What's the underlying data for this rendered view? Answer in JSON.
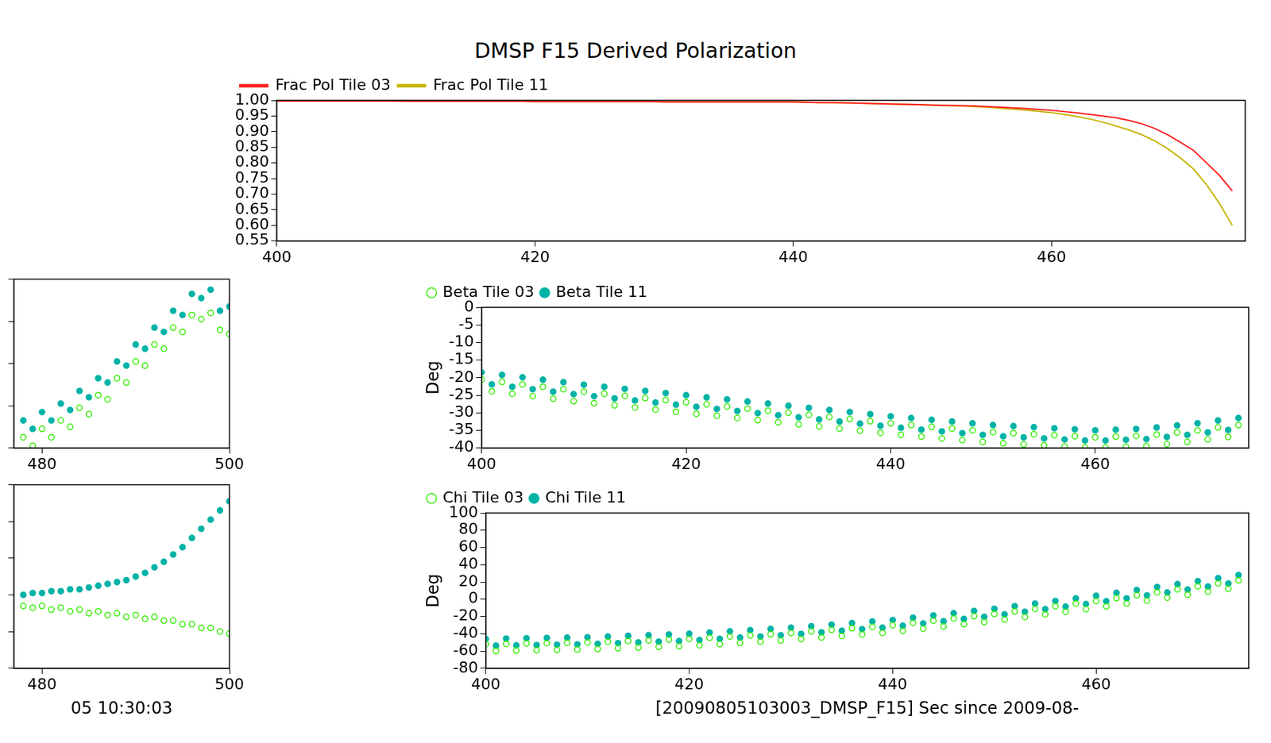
{
  "chart_data": [
    {
      "type": "line",
      "title": "DMSP F15  Derived Polarization",
      "x": [
        400,
        401,
        402,
        403,
        404,
        405,
        406,
        407,
        408,
        409,
        410,
        411,
        412,
        413,
        414,
        415,
        416,
        417,
        418,
        419,
        420,
        421,
        422,
        423,
        424,
        425,
        426,
        427,
        428,
        429,
        430,
        431,
        432,
        433,
        434,
        435,
        436,
        437,
        438,
        439,
        440,
        441,
        442,
        443,
        444,
        445,
        446,
        447,
        448,
        449,
        450,
        451,
        452,
        453,
        454,
        455,
        456,
        457,
        458,
        459,
        460,
        461,
        462,
        463,
        464,
        465,
        466,
        467,
        468,
        469,
        470,
        471,
        472,
        473,
        474
      ],
      "xlim": [
        400,
        475
      ],
      "xticks": [
        400,
        420,
        440,
        460
      ],
      "ylim": [
        0.55,
        1.0
      ],
      "yticks": [
        {
          "value": 0.55,
          "label": "0.55"
        },
        {
          "value": 0.6,
          "label": "0.60"
        },
        {
          "value": 0.65,
          "label": "0.65"
        },
        {
          "value": 0.7,
          "label": "0.70"
        },
        {
          "value": 0.75,
          "label": "0.75"
        },
        {
          "value": 0.8,
          "label": "0.80"
        },
        {
          "value": 0.85,
          "label": "0.85"
        },
        {
          "value": 0.9,
          "label": "0.90"
        },
        {
          "value": 0.95,
          "label": "0.95"
        },
        {
          "value": 1.0,
          "label": "1.00"
        }
      ],
      "grid": false,
      "legend": "top",
      "series": [
        {
          "name": "Frac Pol Tile 03",
          "color": "#ff2020",
          "line_style": "solid",
          "values": [
            0.998,
            0.998,
            0.998,
            0.998,
            0.998,
            0.998,
            0.998,
            0.998,
            0.998,
            0.998,
            0.997,
            0.997,
            0.997,
            0.997,
            0.997,
            0.997,
            0.997,
            0.997,
            0.997,
            0.997,
            0.996,
            0.996,
            0.996,
            0.996,
            0.996,
            0.996,
            0.996,
            0.996,
            0.996,
            0.996,
            0.995,
            0.995,
            0.995,
            0.995,
            0.995,
            0.995,
            0.995,
            0.995,
            0.995,
            0.995,
            0.995,
            0.994,
            0.993,
            0.993,
            0.992,
            0.991,
            0.99,
            0.989,
            0.988,
            0.987,
            0.986,
            0.985,
            0.984,
            0.983,
            0.982,
            0.98,
            0.978,
            0.976,
            0.974,
            0.971,
            0.968,
            0.964,
            0.96,
            0.955,
            0.95,
            0.944,
            0.936,
            0.925,
            0.91,
            0.89,
            0.865,
            0.84,
            0.8,
            0.76,
            0.71
          ]
        },
        {
          "name": "Frac Pol Tile 11",
          "color": "#c8b400",
          "line_style": "solid",
          "values": [
            0.998,
            0.998,
            0.998,
            0.998,
            0.998,
            0.998,
            0.998,
            0.998,
            0.998,
            0.998,
            0.997,
            0.997,
            0.997,
            0.997,
            0.997,
            0.997,
            0.997,
            0.997,
            0.997,
            0.997,
            0.996,
            0.996,
            0.996,
            0.996,
            0.996,
            0.996,
            0.996,
            0.996,
            0.996,
            0.996,
            0.995,
            0.995,
            0.995,
            0.995,
            0.995,
            0.995,
            0.995,
            0.995,
            0.995,
            0.995,
            0.995,
            0.994,
            0.993,
            0.993,
            0.992,
            0.991,
            0.99,
            0.989,
            0.988,
            0.987,
            0.986,
            0.984,
            0.983,
            0.982,
            0.98,
            0.978,
            0.975,
            0.972,
            0.969,
            0.965,
            0.961,
            0.955,
            0.948,
            0.94,
            0.93,
            0.918,
            0.905,
            0.89,
            0.87,
            0.845,
            0.815,
            0.78,
            0.73,
            0.67,
            0.6
          ]
        }
      ]
    },
    {
      "type": "scatter",
      "x": [
        400,
        401,
        402,
        403,
        404,
        405,
        406,
        407,
        408,
        409,
        410,
        411,
        412,
        413,
        414,
        415,
        416,
        417,
        418,
        419,
        420,
        421,
        422,
        423,
        424,
        425,
        426,
        427,
        428,
        429,
        430,
        431,
        432,
        433,
        434,
        435,
        436,
        437,
        438,
        439,
        440,
        441,
        442,
        443,
        444,
        445,
        446,
        447,
        448,
        449,
        450,
        451,
        452,
        453,
        454,
        455,
        456,
        457,
        458,
        459,
        460,
        461,
        462,
        463,
        464,
        465,
        466,
        467,
        468,
        469,
        470,
        471,
        472,
        473,
        474
      ],
      "xlim": [
        400,
        475
      ],
      "xticks": [
        400,
        420,
        440,
        460
      ],
      "ylim": [
        -40,
        0
      ],
      "yticks": [
        -40,
        -35,
        -30,
        -25,
        -20,
        -15,
        -10,
        -5,
        0
      ],
      "ylabel": "Deg",
      "grid": false,
      "legend": "top",
      "series": [
        {
          "name": "Beta Tile 03",
          "color": "#33ee00",
          "marker": "circle-open",
          "values": [
            -20.5,
            -23.9,
            -21.2,
            -24.6,
            -21.9,
            -25.3,
            -22.6,
            -26.0,
            -23.3,
            -26.7,
            -24.0,
            -27.3,
            -24.6,
            -27.9,
            -25.2,
            -28.5,
            -25.8,
            -29.1,
            -26.4,
            -29.7,
            -27.0,
            -30.3,
            -27.6,
            -30.9,
            -28.2,
            -31.5,
            -28.8,
            -32.1,
            -29.4,
            -32.7,
            -30.0,
            -33.3,
            -30.6,
            -33.9,
            -31.2,
            -34.5,
            -31.8,
            -35.1,
            -32.4,
            -35.7,
            -33.0,
            -36.3,
            -33.5,
            -36.8,
            -34.0,
            -37.3,
            -34.5,
            -37.8,
            -35.0,
            -38.3,
            -35.5,
            -38.7,
            -35.8,
            -39.0,
            -36.1,
            -39.3,
            -36.4,
            -39.6,
            -36.7,
            -39.9,
            -37.0,
            -39.9,
            -36.8,
            -39.7,
            -36.6,
            -39.5,
            -36.2,
            -38.9,
            -35.6,
            -38.3,
            -35.0,
            -37.6,
            -34.2,
            -36.9,
            -33.5
          ]
        },
        {
          "name": "Beta Tile 11",
          "color": "#00b3a6",
          "marker": "circle",
          "values": [
            -18.5,
            -21.9,
            -19.2,
            -22.6,
            -19.9,
            -23.3,
            -20.6,
            -24.0,
            -21.3,
            -24.7,
            -22.0,
            -25.3,
            -22.6,
            -25.9,
            -23.2,
            -26.5,
            -23.8,
            -27.1,
            -24.4,
            -27.7,
            -25.0,
            -28.3,
            -25.6,
            -28.9,
            -26.2,
            -29.5,
            -26.8,
            -30.1,
            -27.4,
            -30.7,
            -28.0,
            -31.3,
            -28.6,
            -31.9,
            -29.2,
            -32.5,
            -29.8,
            -33.1,
            -30.4,
            -33.7,
            -31.0,
            -34.3,
            -31.5,
            -34.8,
            -32.0,
            -35.3,
            -32.5,
            -35.8,
            -33.0,
            -36.3,
            -33.5,
            -36.7,
            -33.8,
            -37.0,
            -34.1,
            -37.3,
            -34.4,
            -37.6,
            -34.7,
            -37.9,
            -35.0,
            -37.9,
            -34.8,
            -37.7,
            -34.6,
            -37.5,
            -34.2,
            -36.9,
            -33.6,
            -36.3,
            -33.0,
            -35.6,
            -32.2,
            -34.9,
            -31.5
          ]
        }
      ]
    },
    {
      "type": "scatter",
      "x": [
        400,
        401,
        402,
        403,
        404,
        405,
        406,
        407,
        408,
        409,
        410,
        411,
        412,
        413,
        414,
        415,
        416,
        417,
        418,
        419,
        420,
        421,
        422,
        423,
        424,
        425,
        426,
        427,
        428,
        429,
        430,
        431,
        432,
        433,
        434,
        435,
        436,
        437,
        438,
        439,
        440,
        441,
        442,
        443,
        444,
        445,
        446,
        447,
        448,
        449,
        450,
        451,
        452,
        453,
        454,
        455,
        456,
        457,
        458,
        459,
        460,
        461,
        462,
        463,
        464,
        465,
        466,
        467,
        468,
        469,
        470,
        471,
        472,
        473,
        474
      ],
      "xlim": [
        400,
        475
      ],
      "xticks": [
        400,
        420,
        440,
        460
      ],
      "ylim": [
        -80,
        100
      ],
      "yticks": [
        -80,
        -60,
        -40,
        -20,
        0,
        20,
        40,
        60,
        80,
        100
      ],
      "ylabel": "Deg",
      "xlabel": "[20090805103003_DMSP_F15] Sec since 2009-08-",
      "grid": false,
      "legend": "top",
      "series": [
        {
          "name": "Chi Tile 03",
          "color": "#33ee00",
          "marker": "circle-open",
          "values": [
            -52,
            -59.8,
            -51.6,
            -59.4,
            -51.2,
            -59.0,
            -50.8,
            -58.6,
            -50.4,
            -58.2,
            -50,
            -57.6,
            -49.2,
            -56.8,
            -48.4,
            -56.0,
            -47.6,
            -55.2,
            -46.8,
            -54.4,
            -46,
            -53.3,
            -44.6,
            -51.9,
            -43.2,
            -50.5,
            -41.8,
            -49.1,
            -40.4,
            -47.7,
            -39,
            -46.1,
            -37.2,
            -44.3,
            -35.4,
            -42.5,
            -33.6,
            -40.7,
            -31.8,
            -38.9,
            -30,
            -36.7,
            -27.4,
            -34.1,
            -24.8,
            -31.5,
            -22.2,
            -28.9,
            -19.6,
            -26.3,
            -17,
            -23.5,
            -14,
            -20.5,
            -11,
            -17.5,
            -8,
            -14.5,
            -5,
            -11.5,
            -2,
            -8.3,
            1.4,
            -4.9,
            4.8,
            -1.5,
            8.2,
            1.9,
            11.6,
            5.3,
            15,
            8.75,
            18.5,
            12.25,
            22
          ]
        },
        {
          "name": "Chi Tile 11",
          "color": "#00b3a6",
          "marker": "circle",
          "values": [
            -46,
            -53.8,
            -45.6,
            -53.4,
            -45.2,
            -53.0,
            -44.8,
            -52.6,
            -44.4,
            -52.2,
            -44,
            -51.6,
            -43.2,
            -50.8,
            -42.4,
            -50.0,
            -41.6,
            -49.2,
            -40.8,
            -48.4,
            -40,
            -47.3,
            -38.6,
            -45.9,
            -37.2,
            -44.5,
            -35.8,
            -43.1,
            -34.4,
            -41.7,
            -33,
            -40.1,
            -31.2,
            -38.3,
            -29.4,
            -36.5,
            -27.6,
            -34.7,
            -25.8,
            -32.9,
            -24,
            -30.7,
            -21.4,
            -28.1,
            -18.8,
            -25.5,
            -16.2,
            -22.9,
            -13.6,
            -20.3,
            -11,
            -17.5,
            -8,
            -14.5,
            -5,
            -11.5,
            -2,
            -8.5,
            1,
            -5.5,
            4,
            -2.3,
            7.4,
            1.1,
            10.8,
            4.5,
            14.2,
            7.9,
            17.6,
            11.3,
            21,
            14.75,
            24.5,
            18.25,
            28
          ]
        }
      ]
    },
    {
      "type": "scatter",
      "x": [
        478,
        479,
        480,
        481,
        482,
        483,
        484,
        485,
        486,
        487,
        488,
        489,
        490,
        491,
        492,
        493,
        494,
        495,
        496,
        497,
        498,
        499,
        500
      ],
      "xlim": [
        477,
        500
      ],
      "xticks": [
        480,
        500
      ],
      "ylim": [
        -40,
        0
      ],
      "yticks": [
        -40,
        -30,
        -20,
        -10,
        0
      ],
      "tick_labels": "x",
      "grid": false,
      "series": [
        {
          "color": "#33ee00",
          "marker": "circle-open",
          "values": [
            -37.5,
            -39.5,
            -35.5,
            -37.5,
            -33.5,
            -35,
            -30.5,
            -32,
            -27.5,
            -28.5,
            -23.5,
            -24.5,
            -19.5,
            -20.5,
            -15.5,
            -16.5,
            -11.5,
            -12.5,
            -8.5,
            -9.5,
            -8,
            -12,
            -13
          ]
        },
        {
          "color": "#00b3a6",
          "marker": "circle",
          "values": [
            -33.5,
            -35.5,
            -31.5,
            -33.5,
            -29.5,
            -31.0,
            -26.5,
            -28.0,
            -23.5,
            -24.5,
            -19.5,
            -20.5,
            -15.5,
            -16.5,
            -11.5,
            -12.5,
            -7.5,
            -8.5,
            -3.5,
            -4.5,
            -2.5,
            -7.5,
            -6.5
          ]
        }
      ]
    },
    {
      "type": "scatter",
      "x": [
        478,
        479,
        480,
        481,
        482,
        483,
        484,
        485,
        486,
        487,
        488,
        489,
        490,
        491,
        492,
        493,
        494,
        495,
        496,
        497,
        498,
        499,
        500
      ],
      "xlim": [
        477,
        500
      ],
      "xticks": [
        480,
        500
      ],
      "ylim": [
        -20,
        80
      ],
      "yticks": [
        -20,
        0,
        20,
        40,
        60,
        80
      ],
      "xlabel": "05 10:30:03",
      "tick_labels": "x",
      "grid": false,
      "series": [
        {
          "color": "#33ee00",
          "marker": "circle-open",
          "values": [
            14,
            13,
            14,
            12,
            13,
            11,
            12,
            10,
            11,
            9,
            10,
            8,
            9,
            7,
            8,
            6,
            6,
            4,
            4,
            2,
            2,
            0,
            -1
          ]
        },
        {
          "color": "#00b3a6",
          "marker": "circle",
          "values": [
            20,
            21,
            21,
            22,
            22,
            23,
            23,
            24,
            25,
            26,
            27,
            28,
            30,
            32,
            35,
            38,
            42,
            46,
            51,
            56,
            61,
            66,
            71
          ]
        }
      ]
    }
  ]
}
